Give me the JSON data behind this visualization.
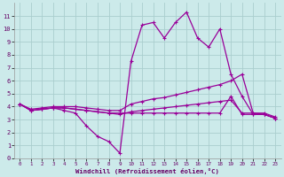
{
  "xlabel": "Windchill (Refroidissement éolien,°C)",
  "bg_color": "#cceaea",
  "grid_color": "#aacece",
  "line_color": "#990099",
  "xlim": [
    -0.5,
    23.5
  ],
  "ylim": [
    0,
    12
  ],
  "xticks": [
    0,
    1,
    2,
    3,
    4,
    5,
    6,
    7,
    8,
    9,
    10,
    11,
    12,
    13,
    14,
    15,
    16,
    17,
    18,
    19,
    20,
    21,
    22,
    23
  ],
  "yticks": [
    0,
    1,
    2,
    3,
    4,
    5,
    6,
    7,
    8,
    9,
    10,
    11
  ],
  "series": [
    {
      "x": [
        0,
        1,
        2,
        3,
        4,
        5,
        6,
        7,
        8,
        9,
        10,
        11,
        12,
        13,
        14,
        15,
        16,
        17,
        18,
        19,
        20,
        21,
        22,
        23
      ],
      "y": [
        4.2,
        3.7,
        3.8,
        3.9,
        3.7,
        3.5,
        2.5,
        1.7,
        1.3,
        0.4,
        7.5,
        10.3,
        10.5,
        9.3,
        10.5,
        11.3,
        9.3,
        8.6,
        10.0,
        6.5,
        4.8,
        3.4,
        3.4,
        3.1
      ]
    },
    {
      "x": [
        0,
        1,
        2,
        3,
        4,
        5,
        6,
        7,
        8,
        9,
        10,
        11,
        12,
        13,
        14,
        15,
        16,
        17,
        18,
        19,
        20,
        21,
        22,
        23
      ],
      "y": [
        4.2,
        3.8,
        3.9,
        4.0,
        4.0,
        4.0,
        3.9,
        3.8,
        3.7,
        3.7,
        4.2,
        4.4,
        4.6,
        4.7,
        4.9,
        5.1,
        5.3,
        5.5,
        5.7,
        6.0,
        6.5,
        3.5,
        3.5,
        3.2
      ]
    },
    {
      "x": [
        0,
        1,
        2,
        3,
        4,
        5,
        6,
        7,
        8,
        9,
        10,
        11,
        12,
        13,
        14,
        15,
        16,
        17,
        18,
        19,
        20,
        21,
        22,
        23
      ],
      "y": [
        4.2,
        3.7,
        3.8,
        3.9,
        3.9,
        3.8,
        3.7,
        3.6,
        3.5,
        3.5,
        3.5,
        3.5,
        3.5,
        3.5,
        3.5,
        3.5,
        3.5,
        3.5,
        3.5,
        4.8,
        3.4,
        3.4,
        3.4,
        3.1
      ]
    },
    {
      "x": [
        0,
        1,
        2,
        3,
        4,
        5,
        6,
        7,
        8,
        9,
        10,
        11,
        12,
        13,
        14,
        15,
        16,
        17,
        18,
        19,
        20,
        21,
        22,
        23
      ],
      "y": [
        4.2,
        3.7,
        3.8,
        3.9,
        3.9,
        3.8,
        3.7,
        3.6,
        3.5,
        3.4,
        3.6,
        3.7,
        3.8,
        3.9,
        4.0,
        4.1,
        4.2,
        4.3,
        4.4,
        4.5,
        3.5,
        3.5,
        3.4,
        3.1
      ]
    }
  ]
}
